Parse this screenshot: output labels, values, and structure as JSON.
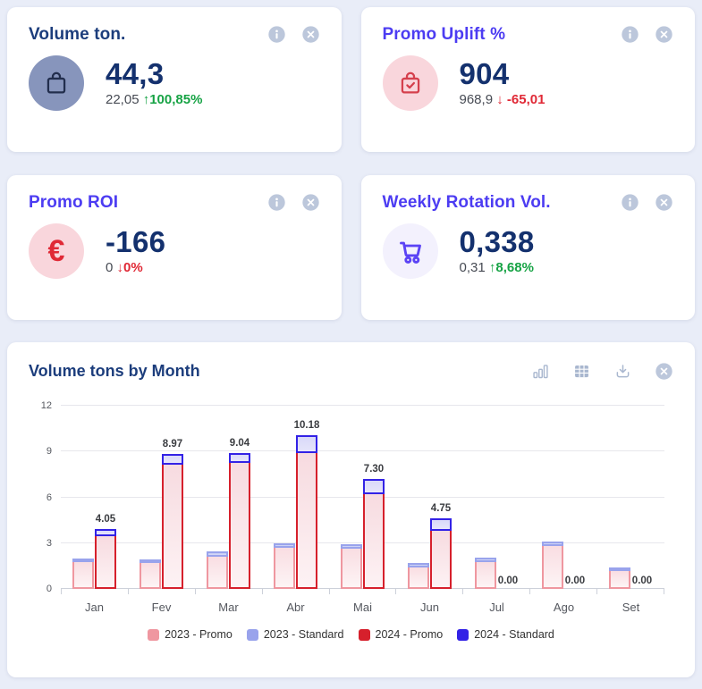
{
  "page_bg": "#e9edf8",
  "kpi_cards": [
    {
      "title": "Volume ton.",
      "title_color": "#1c3d7c",
      "icon": "shopping-bag-icon",
      "icon_bg": "#8795bc",
      "icon_color": "#222e4d",
      "value": "44,3",
      "prev": "22,05",
      "arrow": "↑",
      "delta": "100,85%",
      "delta_color": "#17a345"
    },
    {
      "title": "Promo Uplift %",
      "title_color": "#4c3cf2",
      "icon": "shopping-bag-check-icon",
      "icon_bg": "#f9d6dc",
      "icon_color": "#d5404d",
      "value": "904",
      "prev": "968,9",
      "arrow": "↓",
      "delta": "-65,01",
      "delta_color": "#e02936"
    },
    {
      "title": "Promo ROI",
      "title_color": "#4c3cf2",
      "icon": "euro-icon",
      "icon_bg": "#f9d6dc",
      "icon_color": "#e02936",
      "value": "-166",
      "prev": "0",
      "arrow": "↓",
      "delta": "0%",
      "delta_color": "#e02936"
    },
    {
      "title": "Weekly Rotation Vol.",
      "title_color": "#4c3cf2",
      "icon": "shopping-cart-icon",
      "icon_bg": "#f3f1fd",
      "icon_color": "#5b43f5",
      "value": "0,338",
      "prev": "0,31",
      "arrow": "↑",
      "delta": "8,68%",
      "delta_color": "#17a345"
    }
  ],
  "chart": {
    "title": "Volume tons by Month",
    "toolbar_icons": [
      "bar-chart-icon",
      "table-icon",
      "download-icon",
      "close-icon"
    ]
  },
  "chart_data": {
    "type": "bar",
    "stacked": true,
    "title": "Volume tons by Month",
    "categories": [
      "Jan",
      "Fev",
      "Mar",
      "Abr",
      "Mai",
      "Jun",
      "Jul",
      "Ago",
      "Set"
    ],
    "series": [
      {
        "name": "2023 - Promo",
        "stack": "2023",
        "color": "#ef97a0",
        "fill_top": "#f9dde2",
        "fill_bottom": "#fdf4f5",
        "values": [
          1.85,
          1.8,
          2.25,
          2.8,
          2.75,
          1.55,
          1.9,
          2.9,
          1.3
        ]
      },
      {
        "name": "2023 - Standard",
        "stack": "2023",
        "color": "#99a3ec",
        "fill_top": "#c4caf4",
        "fill_bottom": "#d7dbf8",
        "values": [
          0.25,
          0.23,
          0.3,
          0.3,
          0.3,
          0.25,
          0.25,
          0.35,
          0.25
        ]
      },
      {
        "name": "2024 - Promo",
        "stack": "2024",
        "color": "#d6202c",
        "fill_top": "#f7dbe0",
        "fill_bottom": "#fdf2f4",
        "values": [
          3.6,
          8.27,
          8.4,
          9.0,
          6.3,
          3.9,
          0,
          0,
          0
        ]
      },
      {
        "name": "2024 - Standard",
        "stack": "2024",
        "color": "#3322e6",
        "fill_top": "#d9d9f9",
        "fill_bottom": "#e6e5fb",
        "values": [
          0.45,
          0.7,
          0.64,
          1.18,
          1.0,
          0.85,
          0,
          0,
          0
        ]
      }
    ],
    "bar_labels_2024_total": [
      "4.05",
      "8.97",
      "9.04",
      "10.18",
      "7.30",
      "4.75",
      "0.00",
      "0.00",
      "0.00"
    ],
    "yticks": [
      0,
      3,
      6,
      9,
      12
    ],
    "ylim": [
      0,
      12
    ],
    "grid": true,
    "legend_position": "bottom",
    "legend": [
      "2023 - Promo",
      "2023 - Standard",
      "2024 - Promo",
      "2024 - Standard"
    ]
  }
}
